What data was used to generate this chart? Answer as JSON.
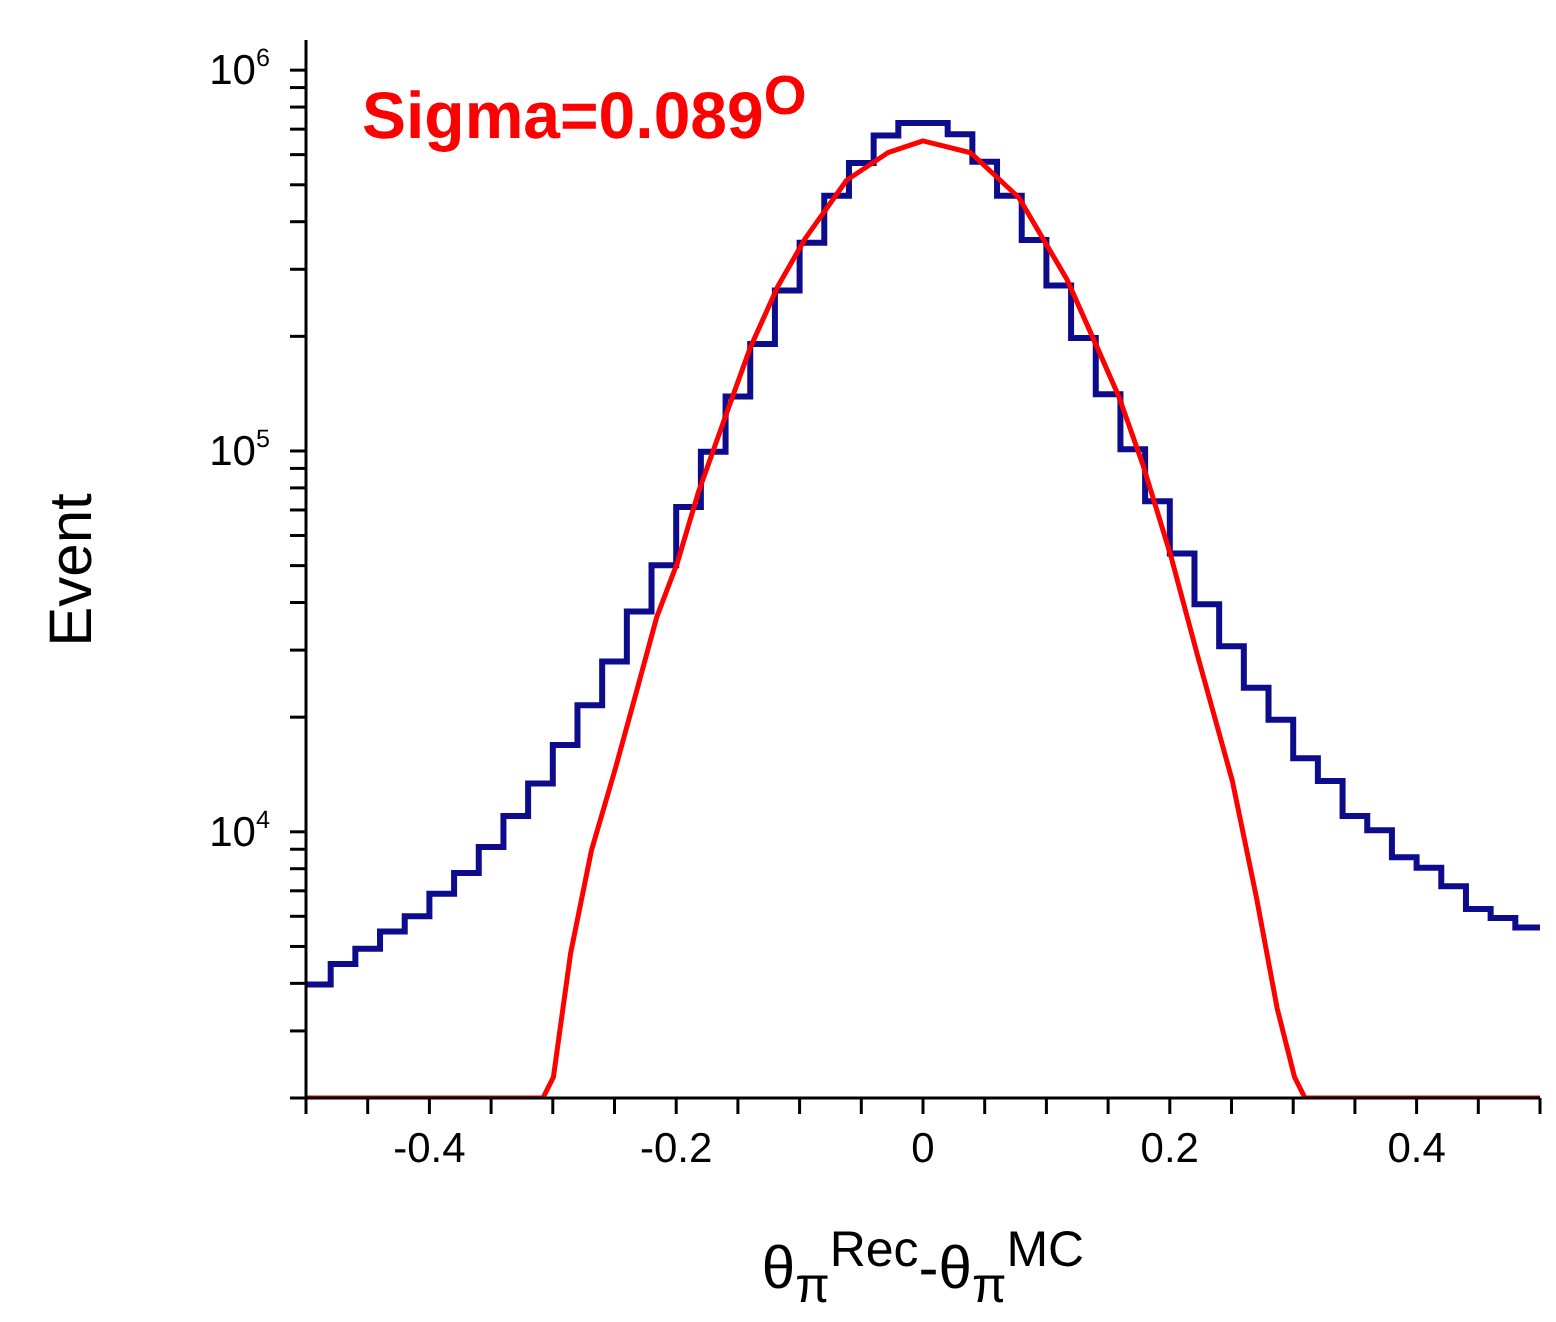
{
  "chart_data": {
    "type": "histogram",
    "ylabel": "Event",
    "xlabel": "θ$_{π}$$^{Rec}$-θ$_{π}$$^{MC}$",
    "annotations": [
      "Sigma=0.089$^{O}$"
    ],
    "log": "y",
    "marker": "none",
    "xlim": [
      -0.5,
      0.5
    ],
    "xticks": [
      {
        "value": -0.5,
        "label": null
      },
      {
        "value": -0.45,
        "label": null
      },
      -0.4,
      {
        "value": -0.35,
        "label": null
      },
      {
        "value": -0.3,
        "label": null
      },
      {
        "value": -0.25,
        "label": null
      },
      -0.2,
      {
        "value": -0.15,
        "label": null
      },
      {
        "value": -0.1,
        "label": null
      },
      {
        "value": -0.05,
        "label": null
      },
      0,
      {
        "value": 0.05,
        "label": null
      },
      {
        "value": 0.1,
        "label": null
      },
      {
        "value": 0.15,
        "label": null
      },
      0.2,
      {
        "value": 0.25,
        "label": null
      },
      {
        "value": 0.3,
        "label": null
      },
      {
        "value": 0.35,
        "label": null
      },
      0.4,
      {
        "value": 0.45,
        "label": null
      },
      {
        "value": 0.5,
        "label": null
      }
    ],
    "ylim": [
      2000,
      1200000
    ],
    "yticks": [
      {
        "value": 2000,
        "label": null
      },
      {
        "value": 3000,
        "label": null
      },
      {
        "value": 4000,
        "label": null
      },
      {
        "value": 5000,
        "label": null
      },
      {
        "value": 6000,
        "label": null
      },
      {
        "value": 7000,
        "label": null
      },
      {
        "value": 8000,
        "label": null
      },
      {
        "value": 9000,
        "label": null
      },
      {
        "value": 10000,
        "label": "10$^{4}$"
      },
      {
        "value": 20000,
        "label": null
      },
      {
        "value": 30000,
        "label": null
      },
      {
        "value": 40000,
        "label": null
      },
      {
        "value": 50000,
        "label": null
      },
      {
        "value": 60000,
        "label": null
      },
      {
        "value": 70000,
        "label": null
      },
      {
        "value": 80000,
        "label": null
      },
      {
        "value": 90000,
        "label": null
      },
      {
        "value": 100000,
        "label": "10$^{5}$"
      },
      {
        "value": 200000,
        "label": null
      },
      {
        "value": 300000,
        "label": null
      },
      {
        "value": 400000,
        "label": null
      },
      {
        "value": 500000,
        "label": null
      },
      {
        "value": 600000,
        "label": null
      },
      {
        "value": 700000,
        "label": null
      },
      {
        "value": 800000,
        "label": null
      },
      {
        "value": 900000,
        "label": null
      },
      {
        "value": 1000000,
        "label": "10$^{6}$"
      }
    ],
    "bins": [
      -0.5,
      -0.48,
      -0.46,
      -0.44,
      -0.42,
      -0.4,
      -0.38,
      -0.36,
      -0.34,
      -0.32,
      -0.3,
      -0.28,
      -0.26,
      -0.24,
      -0.22,
      -0.2,
      -0.18,
      -0.16,
      -0.14,
      -0.12,
      -0.1,
      -0.08,
      -0.06,
      -0.04,
      -0.02,
      0,
      0.02,
      0.04,
      0.06,
      0.08,
      0.1,
      0.12,
      0.14,
      0.16,
      0.18,
      0.2,
      0.22,
      0.24,
      0.26,
      0.28,
      0.3,
      0.32,
      0.34,
      0.36,
      0.38,
      0.4,
      0.42,
      0.44,
      0.46,
      0.48,
      0.5
    ],
    "series": [
      {
        "color": "#0c0c8c",
        "values": [
          3970,
          4500,
          4930,
          5470,
          6000,
          6880,
          7790,
          9120,
          11000,
          13400,
          16900,
          21500,
          28000,
          37900,
          50100,
          71300,
          99500,
          139000,
          191000,
          264000,
          352000,
          468000,
          570000,
          674000,
          726000,
          726000,
          679000,
          575000,
          468000,
          358000,
          272000,
          198000,
          141000,
          101000,
          73800,
          53800,
          39600,
          30700,
          23900,
          19700,
          15600,
          13600,
          11000,
          10100,
          8570,
          8050,
          7190,
          6270,
          5940,
          5610
        ]
      },
      {
        "type": "line",
        "color": "#ff0000",
        "x": [
          -0.5,
          -0.308,
          -0.2995,
          -0.2856,
          -0.2687,
          -0.2492,
          -0.2324,
          -0.2157,
          -0.1989,
          -0.1822,
          -0.1626,
          -0.1402,
          -0.1178,
          -0.0955,
          -0.0619,
          -0.0285,
          0,
          0.0386,
          0.0776,
          0.1167,
          0.139,
          0.1587,
          0.1783,
          0.2005,
          0.2229,
          0.2507,
          0.2703,
          0.287,
          0.3011,
          0.3096,
          0.5
        ],
        "values": [
          2000,
          2000,
          2270,
          4790,
          8930,
          14700,
          23200,
          36700,
          51100,
          77600,
          117000,
          186000,
          270000,
          361000,
          514000,
          607000,
          652000,
          607000,
          463000,
          282000,
          194000,
          139000,
          91800,
          53500,
          28700,
          13600,
          6700,
          3440,
          2270,
          2000,
          2000
        ]
      }
    ]
  }
}
